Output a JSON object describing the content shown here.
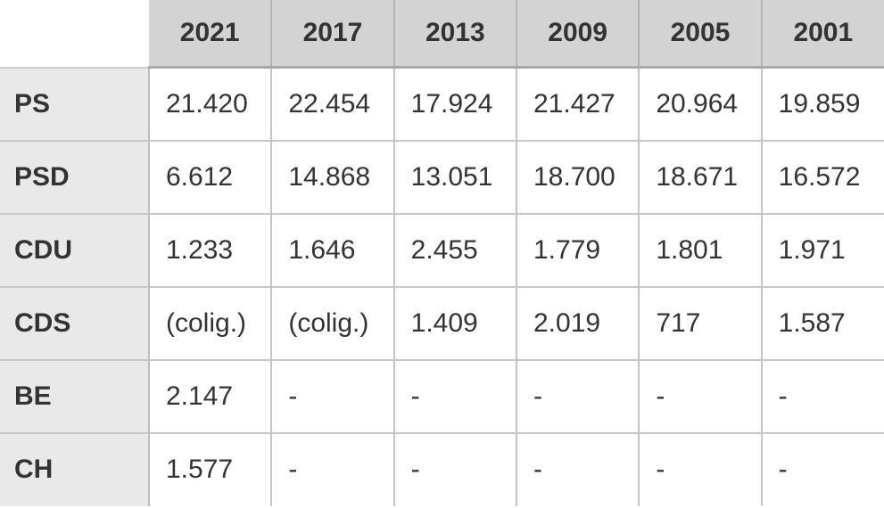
{
  "chart_data": {
    "type": "table",
    "column_headers": [
      "2021",
      "2017",
      "2013",
      "2009",
      "2005",
      "2001"
    ],
    "row_headers": [
      "PS",
      "PSD",
      "CDU",
      "CDS",
      "BE",
      "CH"
    ],
    "rows": [
      [
        "21.420",
        "22.454",
        "17.924",
        "21.427",
        "20.964",
        "19.859"
      ],
      [
        "6.612",
        "14.868",
        "13.051",
        "18.700",
        "18.671",
        "16.572"
      ],
      [
        "1.233",
        "1.646",
        "2.455",
        "1.779",
        "1.801",
        "1.971"
      ],
      [
        "(colig.)",
        "(colig.)",
        "1.409",
        "2.019",
        "717",
        "1.587"
      ],
      [
        "2.147",
        "-",
        "-",
        "-",
        "-",
        "-"
      ],
      [
        "1.577",
        "-",
        "-",
        "-",
        "-",
        "-"
      ]
    ],
    "corner_cell": "",
    "layout": {
      "grid": "on",
      "header_position": "top",
      "row_label_position": "left"
    }
  },
  "colors": {
    "header_bg": "#d3d3d3",
    "row_label_bg": "#e9e9e9",
    "cell_bg": "#ffffff",
    "text": "#333333",
    "header_underline": "#a9a9a9",
    "row_border": "#c7c7c7",
    "column_border": "#c4c4c4"
  }
}
